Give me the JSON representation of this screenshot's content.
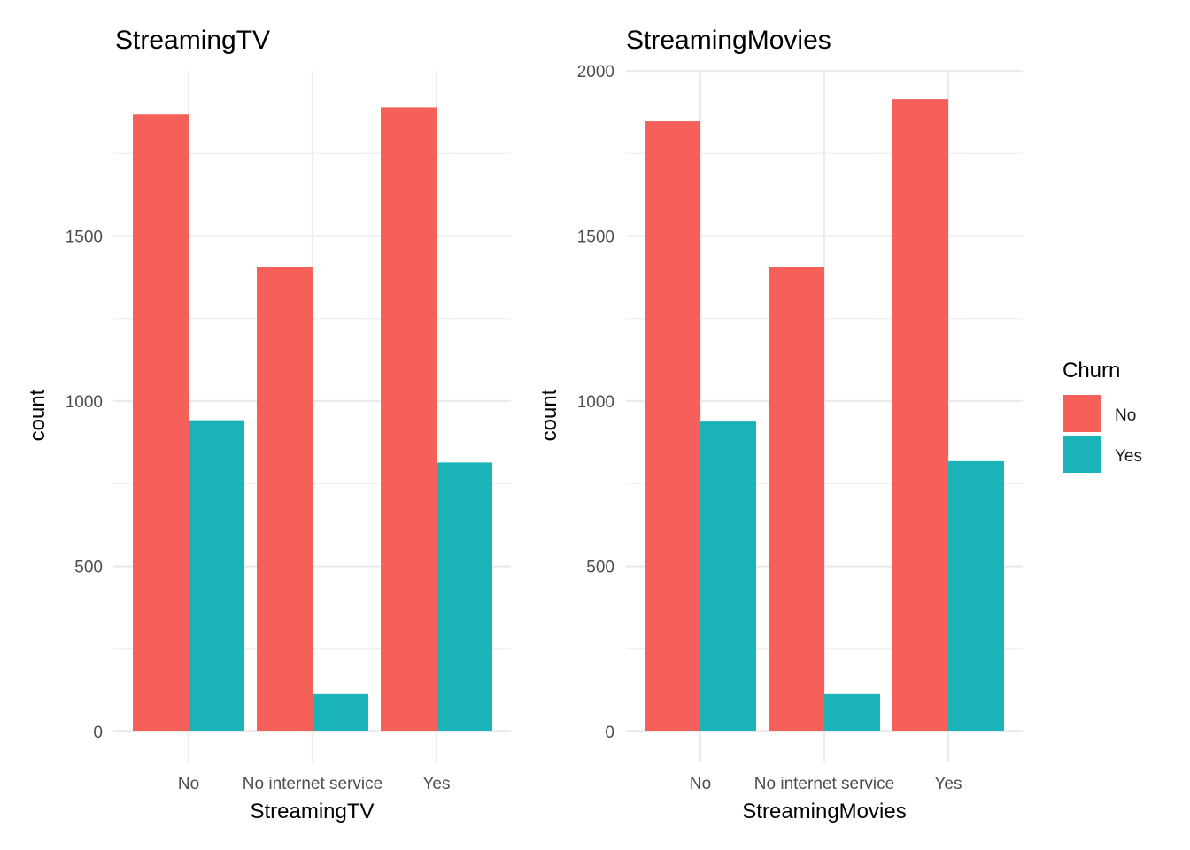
{
  "chart_data": [
    {
      "type": "bar",
      "title": "StreamingTV",
      "xlabel": "StreamingTV",
      "ylabel": "count",
      "categories": [
        "No",
        "No internet service",
        "Yes"
      ],
      "series": [
        {
          "name": "No",
          "values": [
            1868,
            1407,
            1889
          ]
        },
        {
          "name": "Yes",
          "values": [
            942,
            113,
            814
          ]
        }
      ],
      "ylim": [
        0,
        1889
      ],
      "yticks": [
        0,
        500,
        1000,
        1500
      ],
      "grid": true
    },
    {
      "type": "bar",
      "title": "StreamingMovies",
      "xlabel": "StreamingMovies",
      "ylabel": "count",
      "categories": [
        "No",
        "No internet service",
        "Yes"
      ],
      "series": [
        {
          "name": "No",
          "values": [
            1847,
            1407,
            1914
          ]
        },
        {
          "name": "Yes",
          "values": [
            938,
            113,
            818
          ]
        }
      ],
      "ylim": [
        0,
        2000
      ],
      "yticks": [
        0,
        500,
        1000,
        1500,
        2000
      ],
      "grid": true
    }
  ],
  "legend": {
    "title": "Churn",
    "placement": "right",
    "items": [
      {
        "label": "No",
        "color": "#F8766D"
      },
      {
        "label": "Yes",
        "color": "#00BFC4"
      }
    ]
  },
  "colors": {
    "No": "#F5605B",
    "Yes": "#19B3B8"
  }
}
